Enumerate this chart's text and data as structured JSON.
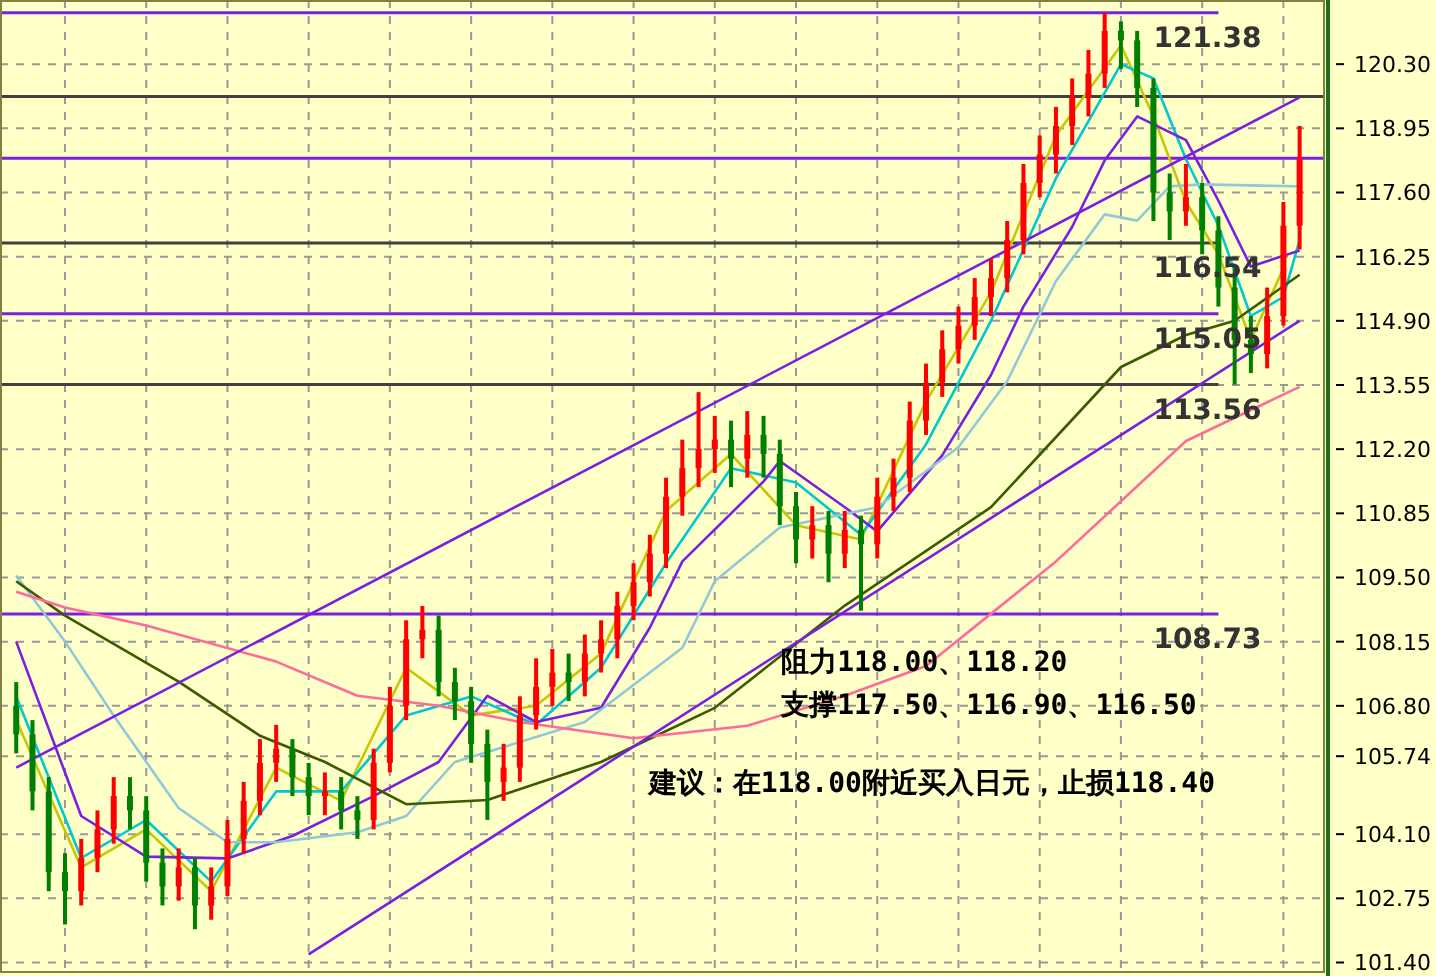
{
  "chart_data": {
    "type": "candlestick",
    "categories": [
      null,
      null,
      null,
      null,
      null,
      null,
      null,
      null,
      null,
      null,
      null,
      null,
      null,
      null,
      null,
      null,
      null,
      null,
      null,
      null,
      null,
      null,
      null,
      null,
      null,
      null,
      null,
      null,
      null,
      null,
      null,
      null,
      null,
      null,
      null,
      null,
      null,
      null,
      null,
      null,
      null,
      null,
      null,
      null,
      null,
      null,
      null,
      null,
      null,
      null,
      null,
      null,
      null,
      null,
      null,
      null,
      null,
      null,
      null,
      null,
      null,
      null,
      null,
      null,
      null,
      null,
      null,
      null,
      null,
      null,
      null,
      null,
      null,
      null,
      null,
      null,
      null,
      null,
      null,
      null
    ],
    "ohlc": [
      [
        106.8,
        107.3,
        105.8,
        106.2
      ],
      [
        106.2,
        106.5,
        104.6,
        105.0
      ],
      [
        105.0,
        105.3,
        102.9,
        103.3
      ],
      [
        103.3,
        103.7,
        102.2,
        102.9
      ],
      [
        102.9,
        104.0,
        102.6,
        103.6
      ],
      [
        103.6,
        104.6,
        103.3,
        104.2
      ],
      [
        104.2,
        105.3,
        103.9,
        104.9
      ],
      [
        104.9,
        105.3,
        104.2,
        104.6
      ],
      [
        104.6,
        104.9,
        103.1,
        103.5
      ],
      [
        103.5,
        103.8,
        102.6,
        103.0
      ],
      [
        103.0,
        103.8,
        102.7,
        103.4
      ],
      [
        103.4,
        103.6,
        102.1,
        102.6
      ],
      [
        102.6,
        103.4,
        102.3,
        103.0
      ],
      [
        103.0,
        104.4,
        102.8,
        104.0
      ],
      [
        104.0,
        105.2,
        103.7,
        104.8
      ],
      [
        104.8,
        106.1,
        104.5,
        105.6
      ],
      [
        105.6,
        106.4,
        105.2,
        105.9
      ],
      [
        105.9,
        106.1,
        104.9,
        105.3
      ],
      [
        105.3,
        105.6,
        104.5,
        104.9
      ],
      [
        104.9,
        105.4,
        104.5,
        105.0
      ],
      [
        105.0,
        105.3,
        104.2,
        104.6
      ],
      [
        104.6,
        104.9,
        104.0,
        104.4
      ],
      [
        104.4,
        105.9,
        104.2,
        105.6
      ],
      [
        105.6,
        107.2,
        105.4,
        106.8
      ],
      [
        106.8,
        108.6,
        106.5,
        108.2
      ],
      [
        108.2,
        108.9,
        107.8,
        108.4
      ],
      [
        108.4,
        108.7,
        107.0,
        107.3
      ],
      [
        107.3,
        107.6,
        106.5,
        106.9
      ],
      [
        106.9,
        107.2,
        105.6,
        106.0
      ],
      [
        106.0,
        106.3,
        104.4,
        105.2
      ],
      [
        105.2,
        106.0,
        104.8,
        105.5
      ],
      [
        105.5,
        107.0,
        105.2,
        106.6
      ],
      [
        106.6,
        107.8,
        106.3,
        107.2
      ],
      [
        107.2,
        108.0,
        106.8,
        107.5
      ],
      [
        107.5,
        107.9,
        106.9,
        107.3
      ],
      [
        107.3,
        108.3,
        107.0,
        107.9
      ],
      [
        107.9,
        108.6,
        107.5,
        108.2
      ],
      [
        108.2,
        109.2,
        107.8,
        108.9
      ],
      [
        108.9,
        109.8,
        108.6,
        109.4
      ],
      [
        109.4,
        110.4,
        109.1,
        110.0
      ],
      [
        110.0,
        111.6,
        109.7,
        111.2
      ],
      [
        111.2,
        112.4,
        110.8,
        111.8
      ],
      [
        111.8,
        113.4,
        111.4,
        112.2
      ],
      [
        112.2,
        112.9,
        111.7,
        112.4
      ],
      [
        112.4,
        112.8,
        111.4,
        112.0
      ],
      [
        112.0,
        113.0,
        111.6,
        112.5
      ],
      [
        112.5,
        112.9,
        111.6,
        112.1
      ],
      [
        112.1,
        112.4,
        110.6,
        111.0
      ],
      [
        111.0,
        111.3,
        109.8,
        110.3
      ],
      [
        110.3,
        111.0,
        109.9,
        110.6
      ],
      [
        110.6,
        110.9,
        109.4,
        110.0
      ],
      [
        110.0,
        110.9,
        109.7,
        110.5
      ],
      [
        110.5,
        110.8,
        108.8,
        110.2
      ],
      [
        110.2,
        111.6,
        109.9,
        111.2
      ],
      [
        111.2,
        112.0,
        110.9,
        111.6
      ],
      [
        111.6,
        113.2,
        111.3,
        112.8
      ],
      [
        112.8,
        114.0,
        112.5,
        113.6
      ],
      [
        113.6,
        114.7,
        113.3,
        114.3
      ],
      [
        114.3,
        115.2,
        114.0,
        114.8
      ],
      [
        114.8,
        115.8,
        114.5,
        115.4
      ],
      [
        115.4,
        116.2,
        115.0,
        115.8
      ],
      [
        115.8,
        117.0,
        115.5,
        116.6
      ],
      [
        116.6,
        118.2,
        116.3,
        117.8
      ],
      [
        117.8,
        118.8,
        117.5,
        118.4
      ],
      [
        118.4,
        119.4,
        118.0,
        119.0
      ],
      [
        119.0,
        120.0,
        118.6,
        119.6
      ],
      [
        119.6,
        120.6,
        119.2,
        120.1
      ],
      [
        120.1,
        121.38,
        119.8,
        121.0
      ],
      [
        121.0,
        121.2,
        120.2,
        120.8
      ],
      [
        120.8,
        121.0,
        119.4,
        119.8
      ],
      [
        119.8,
        120.0,
        117.0,
        117.6
      ],
      [
        117.6,
        118.0,
        116.6,
        117.2
      ],
      [
        117.2,
        118.2,
        116.9,
        117.5
      ],
      [
        117.5,
        117.8,
        116.3,
        116.8
      ],
      [
        116.8,
        117.1,
        115.2,
        115.6
      ],
      [
        115.6,
        116.0,
        113.56,
        114.5
      ],
      [
        114.5,
        115.0,
        113.8,
        114.2
      ],
      [
        114.2,
        115.6,
        113.9,
        115.0
      ],
      [
        115.0,
        117.4,
        114.8,
        116.9
      ],
      [
        116.9,
        119.0,
        116.4,
        118.3
      ]
    ],
    "colors": [
      "#008000",
      "#008000",
      "#008000",
      "#008000",
      "#ff0000",
      "#ff0000",
      "#ff0000",
      "#008000",
      "#008000",
      "#008000",
      "#ff0000",
      "#008000",
      "#ff0000",
      "#ff0000",
      "#ff0000",
      "#ff0000",
      "#ff0000",
      "#008000",
      "#008000",
      "#ff0000",
      "#008000",
      "#008000",
      "#ff0000",
      "#ff0000",
      "#ff0000",
      "#ff0000",
      "#008000",
      "#008000",
      "#008000",
      "#008000",
      "#ff0000",
      "#ff0000",
      "#ff0000",
      "#ff0000",
      "#008000",
      "#ff0000",
      "#ff0000",
      "#ff0000",
      "#ff0000",
      "#ff0000",
      "#ff0000",
      "#ff0000",
      "#ff0000",
      "#ff0000",
      "#008000",
      "#ff0000",
      "#008000",
      "#008000",
      "#008000",
      "#ff0000",
      "#008000",
      "#ff0000",
      "#008000",
      "#ff0000",
      "#ff0000",
      "#ff0000",
      "#ff0000",
      "#ff0000",
      "#ff0000",
      "#ff0000",
      "#ff0000",
      "#ff0000",
      "#ff0000",
      "#ff0000",
      "#ff0000",
      "#ff0000",
      "#ff0000",
      "#ff0000",
      "#008000",
      "#008000",
      "#008000",
      "#008000",
      "#ff0000",
      "#008000",
      "#008000",
      "#008000",
      "#008000",
      "#ff0000",
      "#ff0000",
      "#ff0000"
    ],
    "series": [
      {
        "type": "line",
        "color": "#c8c800",
        "values": [
          106.5,
          null,
          null,
          null,
          103.4,
          null,
          null,
          null,
          104.2,
          null,
          null,
          null,
          102.9,
          null,
          null,
          null,
          105.5,
          null,
          null,
          null,
          104.8,
          null,
          null,
          null,
          107.6,
          null,
          null,
          null,
          106.6,
          null,
          null,
          null,
          106.8,
          null,
          null,
          null,
          107.9,
          null,
          null,
          null,
          110.9,
          null,
          null,
          null,
          112.1,
          null,
          null,
          null,
          110.6,
          null,
          null,
          null,
          110.3,
          null,
          null,
          null,
          113.2,
          null,
          null,
          null,
          115.5,
          null,
          null,
          null,
          118.8,
          null,
          null,
          null,
          120.7,
          null,
          119.2,
          null,
          117.4,
          null,
          116.3,
          null,
          114.5,
          null,
          116.0,
          null
        ]
      },
      {
        "type": "line",
        "color": "#00c8d0",
        "values": [
          107.0,
          null,
          null,
          null,
          103.6,
          null,
          null,
          null,
          104.4,
          null,
          null,
          null,
          103.1,
          null,
          null,
          null,
          105.0,
          null,
          null,
          null,
          105.0,
          null,
          null,
          null,
          106.6,
          null,
          null,
          null,
          107.0,
          null,
          null,
          null,
          106.4,
          null,
          null,
          null,
          107.6,
          null,
          null,
          null,
          109.8,
          null,
          null,
          null,
          111.8,
          null,
          null,
          null,
          111.5,
          null,
          null,
          null,
          110.4,
          null,
          null,
          null,
          112.3,
          null,
          null,
          null,
          114.9,
          null,
          null,
          null,
          117.9,
          null,
          null,
          null,
          120.3,
          null,
          120.0,
          null,
          118.3,
          null,
          116.9,
          null,
          115.0,
          null,
          115.4,
          116.6
        ]
      },
      {
        "type": "line",
        "color": "#7b1fe0",
        "values": [
          108.15,
          null,
          null,
          null,
          104.48,
          null,
          null,
          null,
          103.63,
          null,
          null,
          null,
          null,
          103.59,
          null,
          null,
          null,
          104.06,
          null,
          null,
          null,
          null,
          104.9,
          null,
          null,
          null,
          105.62,
          null,
          null,
          107.01,
          null,
          null,
          106.46,
          null,
          null,
          null,
          106.76,
          null,
          null,
          108.44,
          null,
          109.84,
          null,
          null,
          null,
          null,
          111.52,
          111.95,
          null,
          null,
          null,
          110.98,
          null,
          110.47,
          null,
          null,
          null,
          112.07,
          null,
          null,
          113.76,
          null,
          115.2,
          null,
          null,
          116.88,
          null,
          118.27,
          null,
          119.2,
          null,
          null,
          118.7,
          null,
          117.43,
          null,
          116.04,
          null,
          null,
          116.38
        ]
      },
      {
        "type": "line",
        "color": "#90c8d8",
        "values": [
          109.54,
          null,
          null,
          108.15,
          null,
          null,
          106.59,
          null,
          null,
          null,
          104.65,
          null,
          null,
          103.93,
          null,
          null,
          103.93,
          null,
          null,
          null,
          null,
          104.14,
          null,
          null,
          104.48,
          null,
          null,
          105.62,
          null,
          null,
          null,
          null,
          null,
          null,
          null,
          106.46,
          null,
          null,
          null,
          null,
          null,
          108.02,
          null,
          109.42,
          null,
          null,
          null,
          110.55,
          null,
          null,
          null,
          null,
          null,
          110.98,
          null,
          null,
          null,
          null,
          112.24,
          null,
          null,
          113.63,
          null,
          null,
          115.74,
          null,
          null,
          117.14,
          null,
          117.01,
          null,
          117.73,
          null,
          117.77,
          null,
          null,
          null,
          null,
          null,
          117.73
        ]
      },
      {
        "type": "line",
        "color": "#3c5a00",
        "values": [
          109.42,
          null,
          null,
          108.7,
          null,
          null,
          null,
          null,
          null,
          null,
          107.31,
          null,
          null,
          null,
          null,
          106.17,
          null,
          null,
          null,
          105.62,
          null,
          null,
          null,
          null,
          104.73,
          null,
          null,
          null,
          null,
          104.82,
          null,
          null,
          null,
          null,
          null,
          null,
          105.62,
          null,
          null,
          null,
          null,
          null,
          null,
          106.76,
          null,
          null,
          null,
          null,
          null,
          null,
          null,
          108.91,
          null,
          null,
          null,
          null,
          null,
          null,
          null,
          null,
          110.98,
          null,
          null,
          null,
          null,
          null,
          null,
          null,
          113.93,
          null,
          null,
          null,
          114.6,
          null,
          null,
          114.9,
          null,
          null,
          null,
          115.87
        ]
      },
      {
        "type": "line",
        "color": "#ff6a9a",
        "values": [
          109.2,
          null,
          null,
          108.87,
          null,
          null,
          null,
          null,
          108.49,
          null,
          null,
          null,
          null,
          null,
          null,
          null,
          107.73,
          null,
          null,
          null,
          null,
          107.01,
          null,
          null,
          null,
          null,
          106.8,
          null,
          null,
          null,
          null,
          106.46,
          null,
          null,
          null,
          null,
          null,
          null,
          106.12,
          null,
          null,
          null,
          null,
          null,
          null,
          106.38,
          null,
          null,
          null,
          null,
          null,
          107.01,
          null,
          null,
          null,
          null,
          107.64,
          null,
          null,
          null,
          null,
          null,
          null,
          null,
          109.84,
          null,
          null,
          null,
          null,
          null,
          null,
          null,
          112.37,
          null,
          null,
          null,
          null,
          null,
          null,
          113.51
        ]
      },
      {
        "type": "line",
        "color": "#7b1fe0",
        "values": [
          105.5,
          null,
          null,
          null,
          null,
          null,
          null,
          null,
          null,
          null,
          null,
          null,
          null,
          null,
          null,
          null,
          null,
          null,
          null,
          null,
          null,
          null,
          null,
          null,
          null,
          null,
          null,
          null,
          null,
          null,
          null,
          null,
          null,
          null,
          null,
          null,
          null,
          null,
          null,
          null,
          null,
          null,
          null,
          null,
          null,
          null,
          null,
          null,
          null,
          null,
          null,
          null,
          null,
          null,
          null,
          null,
          null,
          null,
          null,
          null,
          null,
          null,
          null,
          null,
          null,
          null,
          null,
          null,
          null,
          null,
          null,
          null,
          null,
          null,
          null,
          null,
          null,
          null,
          null,
          119.6
        ]
      },
      {
        "type": "line",
        "color": "#7b1fe0",
        "values": [
          null,
          null,
          null,
          null,
          null,
          null,
          null,
          null,
          null,
          null,
          null,
          null,
          null,
          null,
          null,
          null,
          null,
          null,
          101.57,
          null,
          null,
          null,
          null,
          null,
          null,
          null,
          null,
          null,
          null,
          null,
          null,
          null,
          null,
          null,
          null,
          null,
          null,
          null,
          null,
          null,
          null,
          null,
          null,
          null,
          null,
          null,
          null,
          null,
          null,
          null,
          null,
          null,
          null,
          null,
          null,
          null,
          null,
          null,
          null,
          null,
          null,
          null,
          null,
          null,
          null,
          null,
          null,
          null,
          null,
          null,
          null,
          null,
          null,
          null,
          null,
          null,
          null,
          null,
          null,
          114.9
        ]
      }
    ],
    "ref_lines": [
      {
        "axis": "y",
        "value": 121.38,
        "label": "121.38",
        "color": "#7b1fe0"
      },
      {
        "axis": "y",
        "value": 119.62,
        "label": null,
        "color": "#404040"
      },
      {
        "axis": "y",
        "value": 118.32,
        "label": null,
        "color": "#7b1fe0"
      },
      {
        "axis": "y",
        "value": 116.54,
        "label": "116.54",
        "color": "#404040"
      },
      {
        "axis": "y",
        "value": 115.05,
        "label": "115.05",
        "color": "#7b1fe0"
      },
      {
        "axis": "y",
        "value": 113.56,
        "label": "113.56",
        "color": "#404040"
      },
      {
        "axis": "y",
        "value": 108.73,
        "label": "108.73",
        "color": "#7b1fe0"
      }
    ],
    "annotations": [
      "阻力118.00、118.20",
      "支撑117.50、116.90、116.50",
      "建议：在118.00附近买入日元，止损118.40"
    ],
    "ylim": [
      101.2,
      121.65
    ],
    "yticks": [
      {
        "value": 101.4,
        "label": "101.40"
      },
      {
        "value": 102.75,
        "label": "102.75"
      },
      {
        "value": 104.1,
        "label": "104.10"
      },
      {
        "value": 105.74,
        "label": "105.74"
      },
      {
        "value": 106.8,
        "label": "106.80"
      },
      {
        "value": 108.15,
        "label": "108.15"
      },
      {
        "value": 109.5,
        "label": "109.50"
      },
      {
        "value": 110.85,
        "label": "110.85"
      },
      {
        "value": 112.2,
        "label": "112.20"
      },
      {
        "value": 113.55,
        "label": "113.55"
      },
      {
        "value": 114.9,
        "label": "114.90"
      },
      {
        "value": 116.25,
        "label": "116.25"
      },
      {
        "value": 117.6,
        "label": "117.60"
      },
      {
        "value": 118.95,
        "label": "118.95"
      },
      {
        "value": 120.3,
        "label": "120.30"
      }
    ],
    "grid": true
  }
}
